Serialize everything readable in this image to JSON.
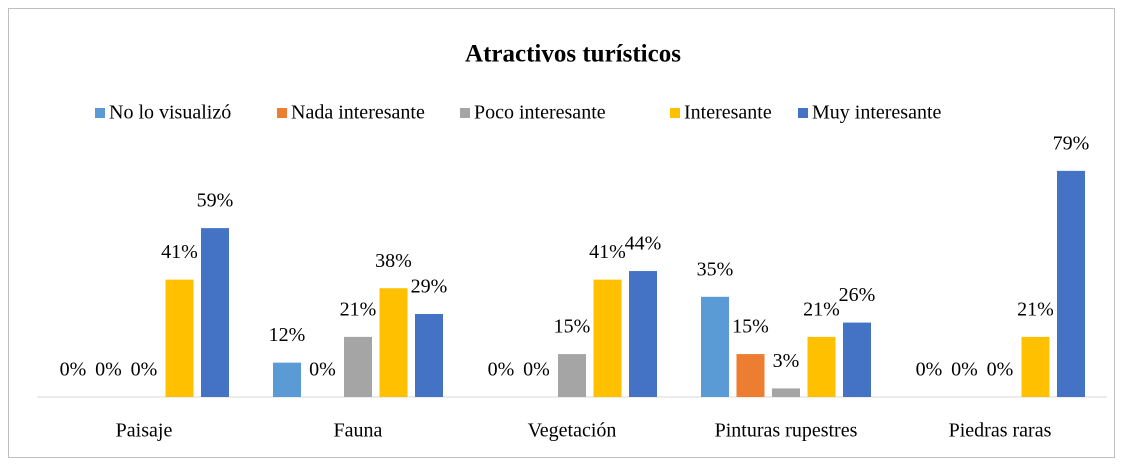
{
  "chart_data": {
    "type": "bar",
    "title": "Atractivos turísticos",
    "categories": [
      "Paisaje",
      "Fauna",
      "Vegetación",
      "Pinturas rupestres",
      "Piedras raras"
    ],
    "series": [
      {
        "name": "No lo visualizó",
        "color": "#5B9BD5",
        "values": [
          0,
          12,
          0,
          35,
          0
        ],
        "value_labels": [
          "0%",
          "12%",
          "0%",
          "35%",
          "0%"
        ]
      },
      {
        "name": "Nada interesante",
        "color": "#ED7D31",
        "values": [
          0,
          0,
          0,
          15,
          0
        ],
        "value_labels": [
          "0%",
          "0%",
          "0%",
          "15%",
          "0%"
        ]
      },
      {
        "name": "Poco interesante",
        "color": "#A5A5A5",
        "values": [
          0,
          21,
          15,
          3,
          0
        ],
        "value_labels": [
          "0%",
          "21%",
          "15%",
          "3%",
          "0%"
        ]
      },
      {
        "name": "Interesante",
        "color": "#FFC000",
        "values": [
          41,
          38,
          41,
          21,
          21
        ],
        "value_labels": [
          "41%",
          "38%",
          "41%",
          "21%",
          "21%"
        ]
      },
      {
        "name": "Muy interesante",
        "color": "#4472C4",
        "values": [
          59,
          29,
          44,
          26,
          79
        ],
        "value_labels": [
          "59%",
          "29%",
          "44%",
          "26%",
          "79%"
        ]
      }
    ],
    "ylim": [
      0,
      80
    ],
    "legend": "top"
  }
}
